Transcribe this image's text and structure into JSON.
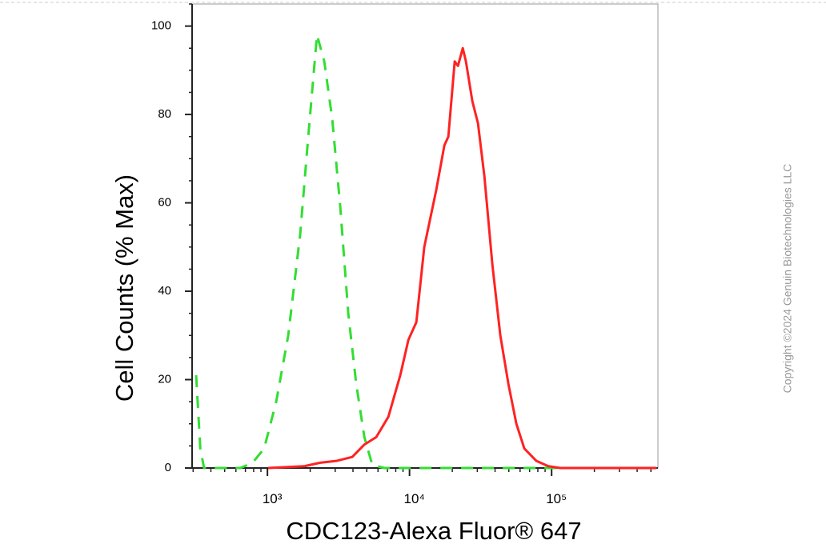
{
  "chart_data": {
    "type": "line",
    "x_label": "CDC123-Alexa Fluor® 647",
    "y_label": "Cell Counts (% Max)",
    "watermark": "Copyright ©2024 Genuin Biotechnologies LLC",
    "xscale": "log",
    "xlim": [
      295,
      560000
    ],
    "ylim": [
      0,
      105
    ],
    "xticks": [
      {
        "value": 1000,
        "label": "10³"
      },
      {
        "value": 10000,
        "label": "10⁴"
      },
      {
        "value": 100000,
        "label": "10⁵"
      }
    ],
    "yticks": [
      0,
      20,
      40,
      60,
      80,
      100
    ],
    "series": [
      {
        "color": "#33dd33",
        "dashed": true,
        "x": [
          315,
          337,
          358,
          643,
          782,
          948,
          1153,
          1401,
          1702,
          1938,
          2233,
          2513,
          2858,
          3257,
          3706,
          4218,
          4810,
          5470,
          6650,
          547000
        ],
        "values": [
          21,
          4.4,
          0,
          0,
          1.1,
          4.4,
          15,
          30,
          53,
          75,
          98,
          92,
          79,
          59,
          35,
          19,
          7,
          0.7,
          0,
          0
        ]
      },
      {
        "color": "#ff2222",
        "dashed": false,
        "x": [
          1013,
          1815,
          2355,
          3055,
          3955,
          4810,
          5835,
          7100,
          8610,
          9820,
          11170,
          12700,
          15440,
          17590,
          18760,
          20800,
          21930,
          23700,
          24950,
          27680,
          30330,
          33650,
          38300,
          43560,
          49660,
          56490,
          64270,
          78150,
          94850,
          115300,
          547000
        ],
        "values": [
          0,
          0.4,
          1.2,
          1.6,
          2.5,
          5.3,
          7,
          11.6,
          21,
          29,
          33,
          50,
          63,
          73,
          75,
          92,
          91,
          95,
          92,
          83,
          78,
          66,
          46,
          30,
          19,
          10,
          4.4,
          1.6,
          0.4,
          0,
          0
        ]
      }
    ]
  }
}
